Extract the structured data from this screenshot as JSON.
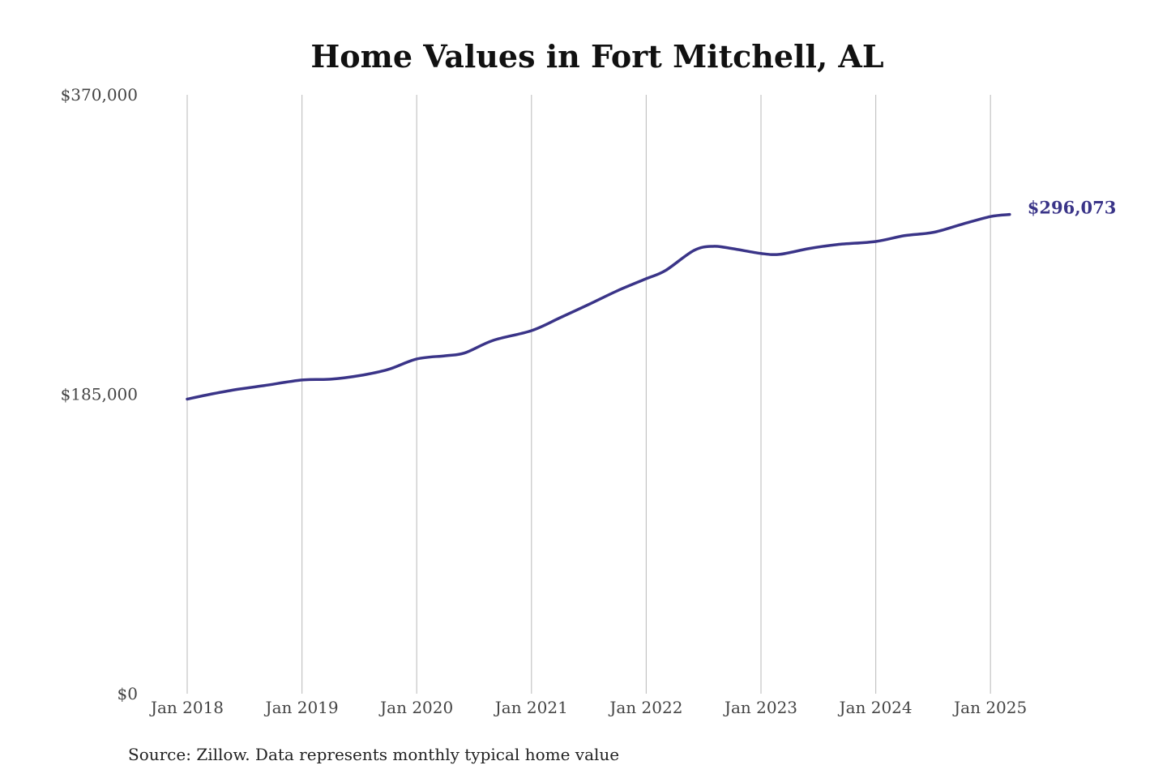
{
  "chart_data": {
    "type": "line",
    "title": "Home Values in Fort Mitchell, AL",
    "source": "Source: Zillow. Data represents monthly typical home value",
    "xlabel": "",
    "ylabel": "",
    "ylim": [
      0,
      370000
    ],
    "y_ticks": [
      {
        "value": 370000,
        "label": "$370,000"
      },
      {
        "value": 185000,
        "label": "$185,000"
      },
      {
        "value": 0,
        "label": "$0"
      }
    ],
    "x_ticks": [
      {
        "value": "2018-01",
        "label": "Jan 2018"
      },
      {
        "value": "2019-01",
        "label": "Jan 2019"
      },
      {
        "value": "2020-01",
        "label": "Jan 2020"
      },
      {
        "value": "2021-01",
        "label": "Jan 2021"
      },
      {
        "value": "2022-01",
        "label": "Jan 2022"
      },
      {
        "value": "2023-01",
        "label": "Jan 2023"
      },
      {
        "value": "2024-01",
        "label": "Jan 2024"
      },
      {
        "value": "2025-01",
        "label": "Jan 2025"
      }
    ],
    "grid": {
      "vertical": true,
      "horizontal": false
    },
    "line_color": "#3a3488",
    "end_label": "$296,073",
    "series": [
      {
        "x": [
          "2018-01",
          "2018-03",
          "2018-06",
          "2018-09",
          "2019-01",
          "2019-04",
          "2019-07",
          "2019-10",
          "2020-01",
          "2020-04",
          "2020-06",
          "2020-09",
          "2021-01",
          "2021-04",
          "2021-07",
          "2021-10",
          "2022-01",
          "2022-03",
          "2022-06",
          "2022-08",
          "2022-10",
          "2023-01",
          "2023-03",
          "2023-06",
          "2023-09",
          "2024-01",
          "2024-04",
          "2024-07",
          "2024-10",
          "2025-01",
          "2025-03"
        ],
        "values": [
          182000,
          184500,
          187800,
          190300,
          193800,
          194300,
          196500,
          200300,
          206800,
          208800,
          210500,
          218300,
          224300,
          232300,
          240500,
          249000,
          256400,
          261400,
          273900,
          276400,
          275000,
          272000,
          271500,
          275000,
          277500,
          279400,
          283000,
          285000,
          290000,
          294800,
          296073
        ]
      }
    ]
  }
}
